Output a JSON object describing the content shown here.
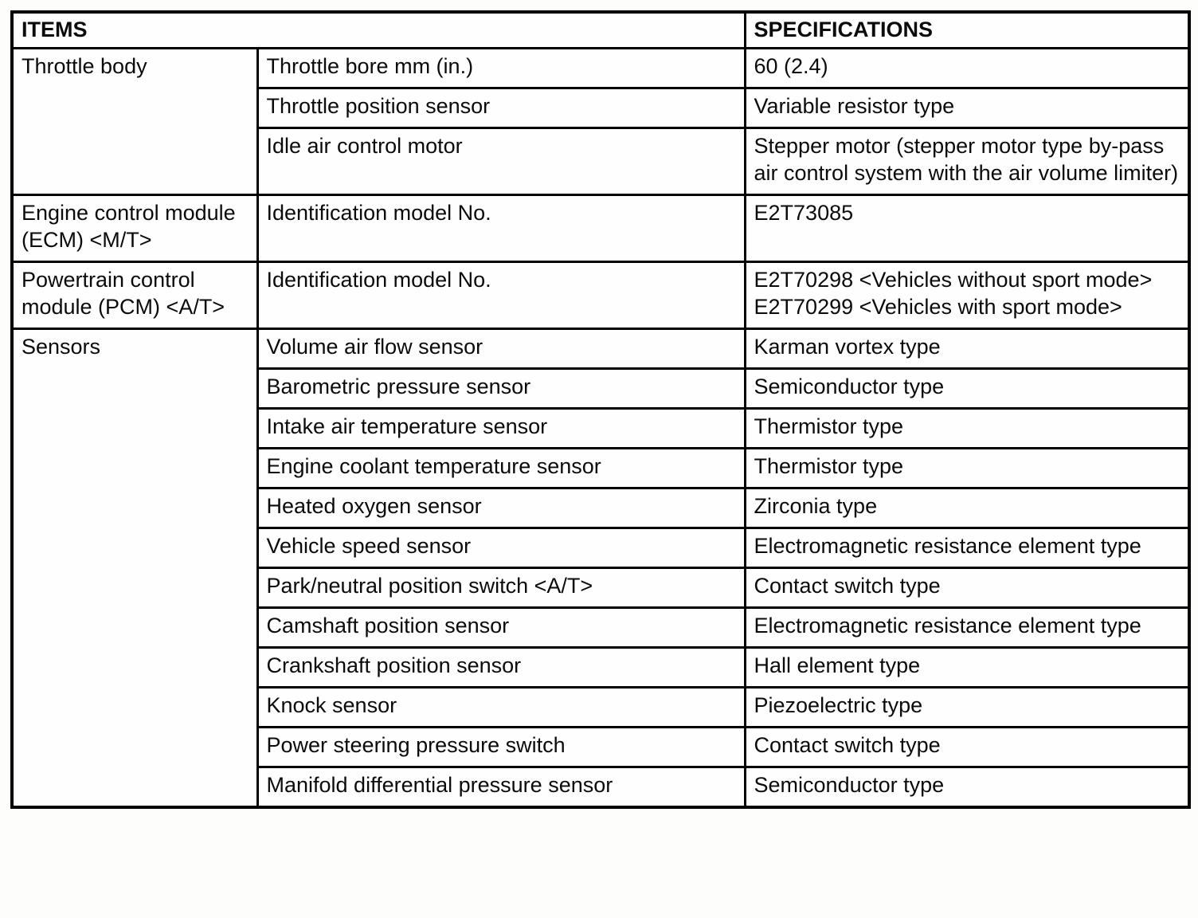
{
  "colors": {
    "border": "#000000",
    "text": "#0b0b0b",
    "background": "#fefefe"
  },
  "table": {
    "headers": {
      "items": "ITEMS",
      "specifications": "SPECIFICATIONS"
    },
    "groups": [
      {
        "name": "Throttle body",
        "rows": [
          {
            "item": "Throttle bore mm (in.)",
            "spec": "60 (2.4)"
          },
          {
            "item": "Throttle position sensor",
            "spec": "Variable resistor type"
          },
          {
            "item": "Idle air control motor",
            "spec": "Stepper motor (stepper motor type by-pass air control system with the air volume limiter)"
          }
        ]
      },
      {
        "name": "Engine control module (ECM) <M/T>",
        "rows": [
          {
            "item": "Identification model No.",
            "spec": "E2T73085"
          }
        ]
      },
      {
        "name": "Powertrain control module (PCM) <A/T>",
        "rows": [
          {
            "item": "Identification model No.",
            "spec": "E2T70298 <Vehicles without sport mode>\nE2T70299 <Vehicles with sport mode>"
          }
        ]
      },
      {
        "name": "Sensors",
        "rows": [
          {
            "item": "Volume air flow sensor",
            "spec": "Karman vortex type"
          },
          {
            "item": "Barometric pressure sensor",
            "spec": "Semiconductor type"
          },
          {
            "item": "Intake air temperature sensor",
            "spec": "Thermistor type"
          },
          {
            "item": "Engine coolant temperature sensor",
            "spec": "Thermistor type"
          },
          {
            "item": "Heated oxygen sensor",
            "spec": "Zirconia type"
          },
          {
            "item": "Vehicle speed sensor",
            "spec": "Electromagnetic resistance element type"
          },
          {
            "item": "Park/neutral position switch <A/T>",
            "spec": "Contact switch type"
          },
          {
            "item": "Camshaft position sensor",
            "spec": "Electromagnetic resistance element type"
          },
          {
            "item": "Crankshaft position sensor",
            "spec": "Hall element type"
          },
          {
            "item": "Knock sensor",
            "spec": "Piezoelectric type"
          },
          {
            "item": "Power steering pressure switch",
            "spec": "Contact switch type"
          },
          {
            "item": "Manifold differential pressure sensor",
            "spec": "Semiconductor type"
          }
        ]
      }
    ]
  }
}
